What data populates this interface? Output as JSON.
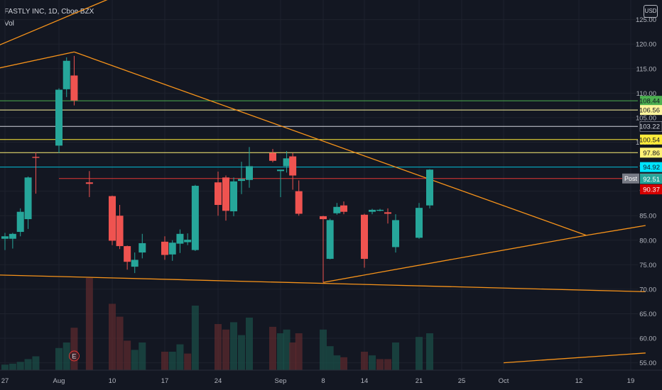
{
  "header": {
    "title": "FASTLY INC, 1D, Cboe BZX",
    "indicator": "Vol",
    "currency_button": "USD"
  },
  "colors": {
    "bg": "#131722",
    "up": "#26a69a",
    "down": "#ef5350",
    "orange": "#f7931a",
    "axis_text": "#b2b5be",
    "grid": "#1e222d"
  },
  "chart_data": {
    "type": "candlestick",
    "symbol": "FASTLY INC",
    "interval": "1D",
    "exchange": "Cboe BZX",
    "y_axis": {
      "position": "right",
      "ticks": [
        55,
        60,
        65,
        70,
        75,
        80,
        85,
        90,
        95,
        100,
        105,
        110,
        115,
        120,
        125
      ],
      "tick_labels": [
        "55.00",
        "60.00",
        "65.00",
        "70.00",
        "75.00",
        "80.00",
        "85.00",
        "90.00",
        "95.00",
        "100.00",
        "105.00",
        "110.00",
        "115.00",
        "120.00",
        "125.00"
      ],
      "ylim": [
        53.5,
        129
      ]
    },
    "x_axis": {
      "ticks": [
        {
          "date": "2020-07-27",
          "label": "27"
        },
        {
          "date": "2020-08-03",
          "label": "Aug"
        },
        {
          "date": "2020-08-10",
          "label": "10"
        },
        {
          "date": "2020-08-17",
          "label": "17"
        },
        {
          "date": "2020-08-24",
          "label": "24"
        },
        {
          "date": "2020-09-01",
          "label": "Sep"
        },
        {
          "date": "2020-09-08",
          "label": "8"
        },
        {
          "date": "2020-09-14",
          "label": "14"
        },
        {
          "date": "2020-09-21",
          "label": "21"
        },
        {
          "date": "2020-09-25",
          "label": "25"
        },
        {
          "date": "2020-10-01",
          "label": "Oct"
        },
        {
          "date": "2020-10-12",
          "label": "12"
        },
        {
          "date": "2020-10-19",
          "label": "19"
        }
      ]
    },
    "candles": [
      {
        "date": "2020-07-27",
        "o": 80.3,
        "h": 81.5,
        "l": 78.0,
        "c": 80.8
      },
      {
        "date": "2020-07-28",
        "o": 80.3,
        "h": 81.5,
        "l": 78.3,
        "c": 81.3
      },
      {
        "date": "2020-07-29",
        "o": 81.7,
        "h": 86.5,
        "l": 80.8,
        "c": 85.8
      },
      {
        "date": "2020-07-30",
        "o": 84.3,
        "h": 93.0,
        "l": 82.3,
        "c": 92.8
      },
      {
        "date": "2020-07-31",
        "o": 97.0,
        "h": 97.9,
        "l": 89.5,
        "c": 96.8
      },
      {
        "date": "2020-08-03",
        "o": 99.3,
        "h": 111.0,
        "l": 97.8,
        "c": 110.7
      },
      {
        "date": "2020-08-04",
        "o": 110.8,
        "h": 117.3,
        "l": 109.2,
        "c": 116.6
      },
      {
        "date": "2020-08-05",
        "o": 113.6,
        "h": 117.6,
        "l": 107.5,
        "c": 108.5
      },
      {
        "date": "2020-08-07",
        "o": 91.8,
        "h": 94.1,
        "l": 88.8,
        "c": 91.5
      },
      {
        "date": "2020-08-10",
        "o": 89.0,
        "h": 89.1,
        "l": 79.0,
        "c": 79.9
      },
      {
        "date": "2020-08-11",
        "o": 85.0,
        "h": 87.2,
        "l": 78.2,
        "c": 78.8
      },
      {
        "date": "2020-08-12",
        "o": 78.8,
        "h": 78.9,
        "l": 74.0,
        "c": 75.6
      },
      {
        "date": "2020-08-13",
        "o": 74.6,
        "h": 77.5,
        "l": 73.3,
        "c": 76.0
      },
      {
        "date": "2020-08-14",
        "o": 77.5,
        "h": 81.3,
        "l": 76.3,
        "c": 79.4
      },
      {
        "date": "2020-08-17",
        "o": 79.7,
        "h": 80.8,
        "l": 76.0,
        "c": 77.0
      },
      {
        "date": "2020-08-18",
        "o": 77.1,
        "h": 80.0,
        "l": 75.8,
        "c": 79.5
      },
      {
        "date": "2020-08-19",
        "o": 79.3,
        "h": 82.2,
        "l": 77.4,
        "c": 81.3
      },
      {
        "date": "2020-08-20",
        "o": 79.6,
        "h": 81.4,
        "l": 79.0,
        "c": 80.1
      },
      {
        "date": "2020-08-21",
        "o": 78.0,
        "h": 91.3,
        "l": 77.8,
        "c": 91.1
      },
      {
        "date": "2020-08-24",
        "o": 91.8,
        "h": 94.0,
        "l": 85.0,
        "c": 87.2
      },
      {
        "date": "2020-08-25",
        "o": 92.8,
        "h": 93.2,
        "l": 84.0,
        "c": 86.0
      },
      {
        "date": "2020-08-26",
        "o": 85.9,
        "h": 92.8,
        "l": 84.9,
        "c": 92.0
      },
      {
        "date": "2020-08-27",
        "o": 92.1,
        "h": 96.0,
        "l": 89.4,
        "c": 92.5
      },
      {
        "date": "2020-08-28",
        "o": 92.3,
        "h": 99.0,
        "l": 90.7,
        "c": 95.1
      },
      {
        "date": "2020-08-31",
        "o": 97.8,
        "h": 98.6,
        "l": 95.9,
        "c": 96.2
      },
      {
        "date": "2020-09-01",
        "o": 94.1,
        "h": 94.2,
        "l": 88.8,
        "c": 94.4
      },
      {
        "date": "2020-09-02",
        "o": 95.1,
        "h": 98.2,
        "l": 93.8,
        "c": 96.7
      },
      {
        "date": "2020-09-03",
        "o": 97.1,
        "h": 97.8,
        "l": 90.3,
        "c": 93.2
      },
      {
        "date": "2020-09-04",
        "o": 90.0,
        "h": 92.2,
        "l": 85.0,
        "c": 85.4
      },
      {
        "date": "2020-09-08",
        "o": 84.9,
        "h": 85.0,
        "l": 71.4,
        "c": 84.3
      },
      {
        "date": "2020-09-09",
        "o": 76.2,
        "h": 84.4,
        "l": 76.1,
        "c": 84.1
      },
      {
        "date": "2020-09-10",
        "o": 85.5,
        "h": 87.6,
        "l": 85.2,
        "c": 86.8
      },
      {
        "date": "2020-09-11",
        "o": 87.1,
        "h": 87.9,
        "l": 85.3,
        "c": 85.8
      },
      {
        "date": "2020-09-14",
        "o": 85.2,
        "h": 85.4,
        "l": 74.4,
        "c": 76.2
      },
      {
        "date": "2020-09-15",
        "o": 85.8,
        "h": 86.4,
        "l": 85.3,
        "c": 86.2
      },
      {
        "date": "2020-09-16",
        "o": 86.0,
        "h": 86.4,
        "l": 85.9,
        "c": 86.2
      },
      {
        "date": "2020-09-17",
        "o": 85.7,
        "h": 86.5,
        "l": 83.4,
        "c": 85.4
      },
      {
        "date": "2020-09-18",
        "o": 78.6,
        "h": 85.3,
        "l": 77.5,
        "c": 84.1
      },
      {
        "date": "2020-09-21",
        "o": 80.5,
        "h": 87.6,
        "l": 80.3,
        "c": 86.6
      },
      {
        "date": "2020-09-22",
        "o": 87.1,
        "h": 94.5,
        "l": 86.5,
        "c": 94.4
      }
    ],
    "volume": [
      {
        "date": "2020-07-27",
        "v": 6,
        "up": true
      },
      {
        "date": "2020-07-28",
        "v": 7,
        "up": true
      },
      {
        "date": "2020-07-29",
        "v": 9,
        "up": true
      },
      {
        "date": "2020-07-30",
        "v": 12,
        "up": true
      },
      {
        "date": "2020-07-31",
        "v": 15,
        "up": true
      },
      {
        "date": "2020-08-03",
        "v": 24,
        "up": true
      },
      {
        "date": "2020-08-04",
        "v": 30,
        "up": true
      },
      {
        "date": "2020-08-05",
        "v": 46,
        "up": false
      },
      {
        "date": "2020-08-07",
        "v": 100,
        "up": false
      },
      {
        "date": "2020-08-10",
        "v": 72,
        "up": false
      },
      {
        "date": "2020-08-11",
        "v": 58,
        "up": false
      },
      {
        "date": "2020-08-12",
        "v": 32,
        "up": false
      },
      {
        "date": "2020-08-13",
        "v": 22,
        "up": true
      },
      {
        "date": "2020-08-14",
        "v": 30,
        "up": true
      },
      {
        "date": "2020-08-17",
        "v": 20,
        "up": false
      },
      {
        "date": "2020-08-18",
        "v": 20,
        "up": true
      },
      {
        "date": "2020-08-19",
        "v": 28,
        "up": true
      },
      {
        "date": "2020-08-20",
        "v": 18,
        "up": false
      },
      {
        "date": "2020-08-21",
        "v": 70,
        "up": true
      },
      {
        "date": "2020-08-24",
        "v": 50,
        "up": false
      },
      {
        "date": "2020-08-25",
        "v": 44,
        "up": false
      },
      {
        "date": "2020-08-26",
        "v": 52,
        "up": true
      },
      {
        "date": "2020-08-27",
        "v": 38,
        "up": true
      },
      {
        "date": "2020-08-28",
        "v": 57,
        "up": true
      },
      {
        "date": "2020-08-31",
        "v": 47,
        "up": false
      },
      {
        "date": "2020-09-01",
        "v": 40,
        "up": true
      },
      {
        "date": "2020-09-02",
        "v": 44,
        "up": true
      },
      {
        "date": "2020-09-03",
        "v": 30,
        "up": false
      },
      {
        "date": "2020-09-04",
        "v": 40,
        "up": false
      },
      {
        "date": "2020-09-08",
        "v": 44,
        "up": true
      },
      {
        "date": "2020-09-09",
        "v": 26,
        "up": true
      },
      {
        "date": "2020-09-10",
        "v": 16,
        "up": true
      },
      {
        "date": "2020-09-11",
        "v": 14,
        "up": false
      },
      {
        "date": "2020-09-14",
        "v": 20,
        "up": false
      },
      {
        "date": "2020-09-15",
        "v": 16,
        "up": true
      },
      {
        "date": "2020-09-16",
        "v": 12,
        "up": false
      },
      {
        "date": "2020-09-17",
        "v": 12,
        "up": false
      },
      {
        "date": "2020-09-18",
        "v": 30,
        "up": true
      },
      {
        "date": "2020-09-21",
        "v": 36,
        "up": true
      },
      {
        "date": "2020-09-22",
        "v": 40,
        "up": true
      }
    ],
    "earnings_marker": {
      "date": "2020-08-05",
      "label": "E"
    },
    "horizontal_levels": [
      {
        "price": 108.44,
        "label": "108.44",
        "color": "#4caf50",
        "tag_bg": "#4caf50",
        "tag_fg": "#131722"
      },
      {
        "price": 106.56,
        "label": "106.56",
        "color": "#fff59d",
        "tag_bg": "#fff59d",
        "tag_fg": "#131722"
      },
      {
        "price": 103.22,
        "label": "103.22",
        "color": "#d1d4dc",
        "tag_bg": "#131722",
        "tag_fg": "#d1d4dc"
      },
      {
        "price": 100.54,
        "label": "100.54",
        "color": "#ffeb3b",
        "tag_bg": "#ffeb3b",
        "tag_fg": "#131722"
      },
      {
        "price": 97.86,
        "label": "97.86",
        "color": "#fff176",
        "tag_bg": "#fff176",
        "tag_fg": "#131722"
      },
      {
        "price": 94.92,
        "label": "94.92",
        "color": "#00bcd4",
        "tag_bg": "#00e5ff",
        "tag_fg": "#131722"
      },
      {
        "price": 92.59,
        "label": "92.59",
        "color": "#e53935",
        "from": "2020-08-03",
        "tag_bg": "#9e9e9e",
        "tag_fg": "#ffffff",
        "prefix": "Post"
      }
    ],
    "price_tags": [
      {
        "price": 92.51,
        "label": "92.51",
        "bg": "#26a69a",
        "fg": "#ffffff"
      },
      {
        "price": 90.37,
        "label": "90.37",
        "bg": "#d50000",
        "fg": "#ffffff"
      }
    ],
    "trend_lines": [
      {
        "from": {
          "date": "2020-07-16",
          "price": 113.0
        },
        "to": {
          "date": "2020-08-27",
          "price": 140.6
        }
      },
      {
        "from": {
          "date": "2020-07-17",
          "price": 112.0
        },
        "to": {
          "date": "2020-08-05",
          "price": 118.4
        }
      },
      {
        "from": {
          "date": "2020-08-05",
          "price": 118.4
        },
        "to": {
          "date": "2020-10-13",
          "price": 81.0
        }
      },
      {
        "from": {
          "date": "2020-09-08",
          "price": 71.4
        },
        "to": {
          "date": "2020-10-13",
          "price": 81.0
        }
      },
      {
        "from": {
          "date": "2020-10-13",
          "price": 81.0
        },
        "to": {
          "date": "2020-10-21",
          "price": 83.0
        }
      },
      {
        "from": {
          "date": "2020-07-24",
          "price": 73.0
        },
        "to": {
          "date": "2020-10-21",
          "price": 69.5
        }
      },
      {
        "from": {
          "date": "2020-10-01",
          "price": 55.0
        },
        "to": {
          "date": "2020-10-21",
          "price": 57.0
        }
      }
    ]
  }
}
